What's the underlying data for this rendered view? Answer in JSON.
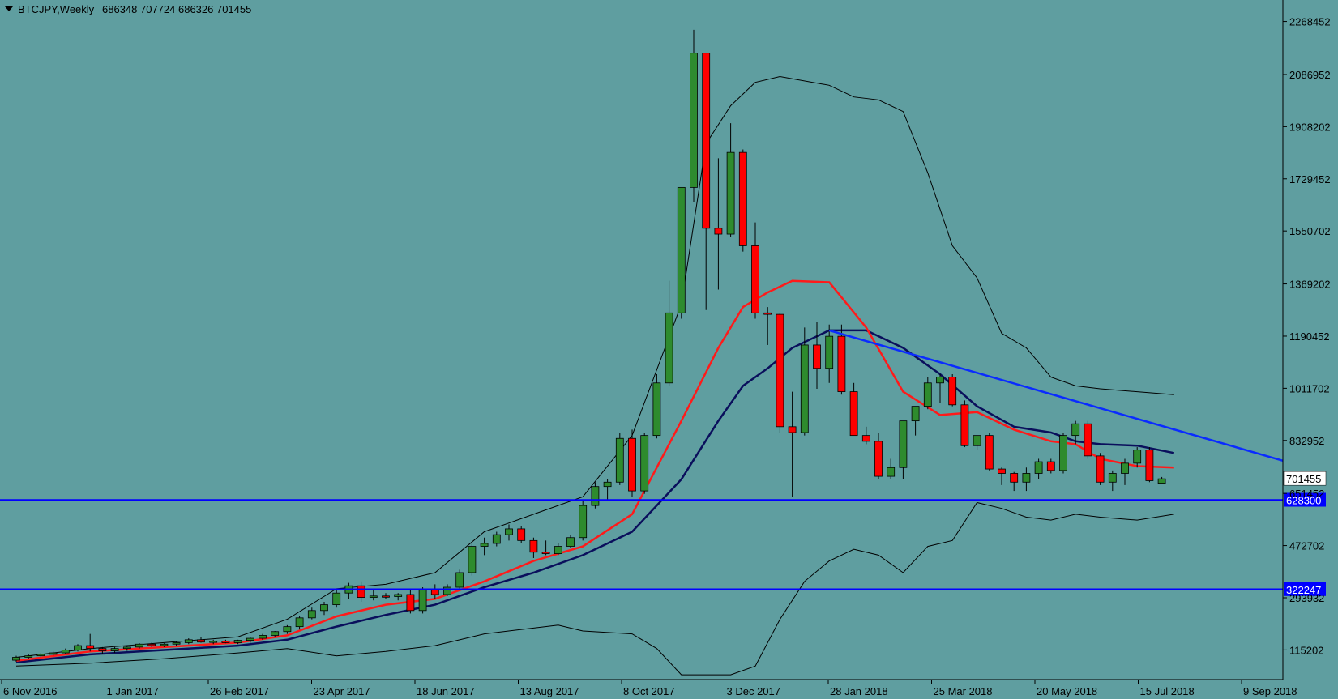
{
  "header": {
    "menu_arrow": "triangle-down-icon",
    "symbol": "BTCJPY,Weekly",
    "ohlc": "686348 707724 686326 701455"
  },
  "colors": {
    "background": "#5f9ea0",
    "bull": "#2e8b2e",
    "bear": "#ff0000",
    "wick": "#000000",
    "ma_fast": "#ff1a1a",
    "ma_slow": "#0a0f5c",
    "bands": "#000000",
    "level_line": "#0000ff",
    "trendline": "#0a2bff",
    "level_label_bg": "#0000ff",
    "price_label_bg": "#ffffff"
  },
  "chart_data": {
    "type": "candlestick",
    "title": "BTCJPY,Weekly",
    "y_ticks": [
      115202,
      293932,
      472702,
      651452,
      832952,
      1011702,
      1190452,
      1369202,
      1550702,
      1729452,
      1908202,
      2086952,
      2268452
    ],
    "x_ticks": [
      "6 Nov 2016",
      "1 Jan 2017",
      "26 Feb 2017",
      "23 Apr 2017",
      "18 Jun 2017",
      "13 Aug 2017",
      "8 Oct 2017",
      "3 Dec 2017",
      "28 Jan 2018",
      "25 Mar 2018",
      "20 May 2018",
      "15 Jul 2018",
      "9 Sep 2018"
    ],
    "ylim": [
      33000,
      2320000
    ],
    "candles": [
      [
        80000,
        95000,
        75000,
        90000
      ],
      [
        90000,
        100000,
        85000,
        95000
      ],
      [
        95000,
        105000,
        90000,
        100000
      ],
      [
        100000,
        110000,
        95000,
        105000
      ],
      [
        105000,
        120000,
        100000,
        115000
      ],
      [
        115000,
        135000,
        110000,
        130000
      ],
      [
        130000,
        170000,
        110000,
        120000
      ],
      [
        120000,
        125000,
        100000,
        112000
      ],
      [
        112000,
        125000,
        105000,
        120000
      ],
      [
        120000,
        128000,
        112000,
        125000
      ],
      [
        125000,
        138000,
        120000,
        135000
      ],
      [
        135000,
        140000,
        125000,
        130000
      ],
      [
        130000,
        138000,
        125000,
        135000
      ],
      [
        135000,
        145000,
        130000,
        140000
      ],
      [
        140000,
        155000,
        135000,
        150000
      ],
      [
        150000,
        160000,
        140000,
        142000
      ],
      [
        142000,
        150000,
        135000,
        145000
      ],
      [
        145000,
        150000,
        138000,
        140000
      ],
      [
        140000,
        150000,
        135000,
        148000
      ],
      [
        148000,
        160000,
        140000,
        155000
      ],
      [
        155000,
        170000,
        150000,
        165000
      ],
      [
        165000,
        180000,
        160000,
        178000
      ],
      [
        178000,
        200000,
        170000,
        195000
      ],
      [
        195000,
        230000,
        185000,
        225000
      ],
      [
        225000,
        260000,
        220000,
        250000
      ],
      [
        250000,
        280000,
        235000,
        270000
      ],
      [
        270000,
        320000,
        260000,
        310000
      ],
      [
        310000,
        345000,
        290000,
        335000
      ],
      [
        335000,
        350000,
        280000,
        295000
      ],
      [
        295000,
        320000,
        285000,
        300000
      ],
      [
        300000,
        310000,
        290000,
        298000
      ],
      [
        298000,
        310000,
        285000,
        305000
      ],
      [
        305000,
        320000,
        240000,
        250000
      ],
      [
        250000,
        330000,
        240000,
        320000
      ],
      [
        320000,
        340000,
        290000,
        305000
      ],
      [
        305000,
        340000,
        300000,
        330000
      ],
      [
        330000,
        390000,
        320000,
        380000
      ],
      [
        380000,
        480000,
        370000,
        470000
      ],
      [
        470000,
        500000,
        440000,
        480000
      ],
      [
        480000,
        520000,
        470000,
        510000
      ],
      [
        510000,
        545000,
        490000,
        530000
      ],
      [
        530000,
        540000,
        480000,
        490000
      ],
      [
        490000,
        500000,
        430000,
        450000
      ],
      [
        450000,
        490000,
        440000,
        445000
      ],
      [
        445000,
        480000,
        440000,
        470000
      ],
      [
        470000,
        510000,
        465000,
        500000
      ],
      [
        500000,
        630000,
        490000,
        610000
      ],
      [
        610000,
        690000,
        600000,
        675000
      ],
      [
        675000,
        700000,
        630000,
        690000
      ],
      [
        690000,
        860000,
        680000,
        840000
      ],
      [
        840000,
        870000,
        640000,
        660000
      ],
      [
        660000,
        860000,
        650000,
        850000
      ],
      [
        850000,
        1060000,
        840000,
        1030000
      ],
      [
        1030000,
        1380000,
        1020000,
        1270000
      ],
      [
        1270000,
        1700000,
        1250000,
        1700000
      ],
      [
        1700000,
        2240000,
        1650000,
        2160000
      ],
      [
        2160000,
        2160000,
        1280000,
        1560000
      ],
      [
        1560000,
        1800000,
        1350000,
        1540000
      ],
      [
        1540000,
        1920000,
        1530000,
        1820000
      ],
      [
        1820000,
        1830000,
        1480000,
        1500000
      ],
      [
        1500000,
        1580000,
        1250000,
        1270000
      ],
      [
        1270000,
        1290000,
        1160000,
        1265000
      ],
      [
        1265000,
        1270000,
        860000,
        880000
      ],
      [
        880000,
        1000000,
        640000,
        860000
      ],
      [
        860000,
        1220000,
        850000,
        1160000
      ],
      [
        1160000,
        1240000,
        1010000,
        1080000
      ],
      [
        1080000,
        1230000,
        1030000,
        1190000
      ],
      [
        1190000,
        1230000,
        990000,
        1000000
      ],
      [
        1000000,
        1030000,
        850000,
        850000
      ],
      [
        850000,
        880000,
        820000,
        830000
      ],
      [
        830000,
        860000,
        700000,
        710000
      ],
      [
        710000,
        770000,
        700000,
        740000
      ],
      [
        740000,
        880000,
        700000,
        900000
      ],
      [
        900000,
        930000,
        850000,
        950000
      ],
      [
        950000,
        1050000,
        940000,
        1030000
      ],
      [
        1030000,
        1060000,
        960000,
        1050000
      ],
      [
        1050000,
        1060000,
        950000,
        955000
      ],
      [
        955000,
        970000,
        810000,
        815000
      ],
      [
        815000,
        850000,
        800000,
        850000
      ],
      [
        850000,
        860000,
        730000,
        735000
      ],
      [
        735000,
        740000,
        680000,
        720000
      ],
      [
        720000,
        725000,
        660000,
        690000
      ],
      [
        690000,
        740000,
        660000,
        720000
      ],
      [
        720000,
        770000,
        700000,
        760000
      ],
      [
        760000,
        770000,
        720000,
        730000
      ],
      [
        730000,
        860000,
        720000,
        850000
      ],
      [
        850000,
        900000,
        820000,
        890000
      ],
      [
        890000,
        900000,
        770000,
        780000
      ],
      [
        780000,
        790000,
        680000,
        690000
      ],
      [
        690000,
        730000,
        660000,
        720000
      ],
      [
        720000,
        770000,
        680000,
        755000
      ],
      [
        755000,
        810000,
        740000,
        800000
      ],
      [
        800000,
        810000,
        690000,
        695000
      ],
      [
        686348,
        707724,
        686326,
        701455
      ]
    ],
    "ma_fast": [
      [
        0,
        78000
      ],
      [
        6,
        110000
      ],
      [
        12,
        125000
      ],
      [
        18,
        140000
      ],
      [
        22,
        165000
      ],
      [
        26,
        230000
      ],
      [
        30,
        270000
      ],
      [
        34,
        290000
      ],
      [
        38,
        350000
      ],
      [
        42,
        420000
      ],
      [
        46,
        470000
      ],
      [
        50,
        580000
      ],
      [
        54,
        900000
      ],
      [
        57,
        1150000
      ],
      [
        59,
        1290000
      ],
      [
        61,
        1340000
      ],
      [
        63,
        1380000
      ],
      [
        66,
        1375000
      ],
      [
        69,
        1220000
      ],
      [
        72,
        1000000
      ],
      [
        75,
        920000
      ],
      [
        78,
        930000
      ],
      [
        81,
        870000
      ],
      [
        84,
        830000
      ],
      [
        86,
        820000
      ],
      [
        88,
        770000
      ],
      [
        91,
        745000
      ],
      [
        94,
        740000
      ]
    ],
    "ma_slow": [
      [
        0,
        72000
      ],
      [
        6,
        100000
      ],
      [
        12,
        115000
      ],
      [
        18,
        130000
      ],
      [
        22,
        150000
      ],
      [
        26,
        195000
      ],
      [
        30,
        235000
      ],
      [
        34,
        270000
      ],
      [
        38,
        330000
      ],
      [
        42,
        380000
      ],
      [
        46,
        440000
      ],
      [
        50,
        520000
      ],
      [
        54,
        700000
      ],
      [
        57,
        900000
      ],
      [
        59,
        1020000
      ],
      [
        61,
        1080000
      ],
      [
        63,
        1150000
      ],
      [
        66,
        1210000
      ],
      [
        69,
        1210000
      ],
      [
        72,
        1150000
      ],
      [
        75,
        1060000
      ],
      [
        78,
        950000
      ],
      [
        81,
        880000
      ],
      [
        84,
        860000
      ],
      [
        86,
        830000
      ],
      [
        88,
        820000
      ],
      [
        91,
        815000
      ],
      [
        94,
        790000
      ]
    ],
    "band_upper": [
      [
        0,
        90000
      ],
      [
        6,
        120000
      ],
      [
        12,
        140000
      ],
      [
        18,
        160000
      ],
      [
        22,
        220000
      ],
      [
        26,
        325000
      ],
      [
        30,
        340000
      ],
      [
        34,
        380000
      ],
      [
        38,
        520000
      ],
      [
        42,
        580000
      ],
      [
        46,
        640000
      ],
      [
        50,
        850000
      ],
      [
        54,
        1300000
      ],
      [
        56,
        1850000
      ],
      [
        58,
        1980000
      ],
      [
        60,
        2060000
      ],
      [
        62,
        2080000
      ],
      [
        66,
        2050000
      ],
      [
        68,
        2010000
      ],
      [
        70,
        2000000
      ],
      [
        72,
        1960000
      ],
      [
        74,
        1750000
      ],
      [
        76,
        1500000
      ],
      [
        78,
        1390000
      ],
      [
        80,
        1200000
      ],
      [
        82,
        1150000
      ],
      [
        84,
        1050000
      ],
      [
        86,
        1020000
      ],
      [
        88,
        1010000
      ],
      [
        91,
        1000000
      ],
      [
        94,
        990000
      ]
    ],
    "band_lower": [
      [
        0,
        60000
      ],
      [
        6,
        70000
      ],
      [
        12,
        85000
      ],
      [
        18,
        105000
      ],
      [
        22,
        120000
      ],
      [
        26,
        95000
      ],
      [
        30,
        110000
      ],
      [
        34,
        130000
      ],
      [
        38,
        170000
      ],
      [
        42,
        190000
      ],
      [
        44,
        200000
      ],
      [
        46,
        180000
      ],
      [
        50,
        170000
      ],
      [
        52,
        120000
      ],
      [
        54,
        30000
      ],
      [
        58,
        30000
      ],
      [
        60,
        60000
      ],
      [
        62,
        220000
      ],
      [
        64,
        350000
      ],
      [
        66,
        420000
      ],
      [
        68,
        460000
      ],
      [
        70,
        440000
      ],
      [
        72,
        380000
      ],
      [
        74,
        470000
      ],
      [
        76,
        490000
      ],
      [
        78,
        620000
      ],
      [
        80,
        600000
      ],
      [
        82,
        570000
      ],
      [
        84,
        560000
      ],
      [
        86,
        580000
      ],
      [
        88,
        570000
      ],
      [
        91,
        560000
      ],
      [
        94,
        580000
      ]
    ],
    "horizontal_levels": [
      {
        "value": 628300,
        "label": "628300"
      },
      {
        "value": 322247,
        "label": "322247"
      }
    ],
    "trendline": {
      "from": [
        66,
        1210000
      ],
      "to": [
        99,
        810000
      ]
    },
    "current_price": {
      "value": 701455,
      "label": "701455"
    }
  }
}
